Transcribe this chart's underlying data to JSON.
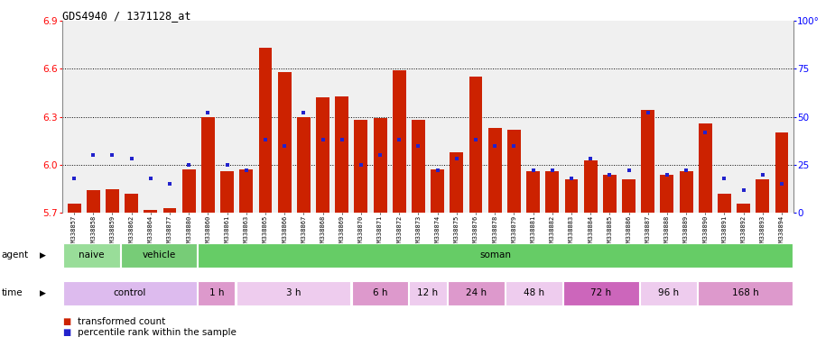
{
  "title": "GDS4940 / 1371128_at",
  "samples": [
    "GSM338857",
    "GSM338858",
    "GSM338859",
    "GSM338862",
    "GSM338864",
    "GSM338877",
    "GSM338880",
    "GSM338860",
    "GSM338861",
    "GSM338863",
    "GSM338865",
    "GSM338866",
    "GSM338867",
    "GSM338868",
    "GSM338869",
    "GSM338870",
    "GSM338871",
    "GSM338872",
    "GSM338873",
    "GSM338874",
    "GSM338875",
    "GSM338876",
    "GSM338878",
    "GSM338879",
    "GSM338881",
    "GSM338882",
    "GSM338883",
    "GSM338884",
    "GSM338885",
    "GSM338886",
    "GSM338887",
    "GSM338888",
    "GSM338889",
    "GSM338890",
    "GSM338891",
    "GSM338892",
    "GSM338893",
    "GSM338894"
  ],
  "bar_heights": [
    5.76,
    5.84,
    5.85,
    5.82,
    5.72,
    5.73,
    5.97,
    6.3,
    5.96,
    5.97,
    6.73,
    6.58,
    6.3,
    6.42,
    6.43,
    6.28,
    6.29,
    6.59,
    6.28,
    5.97,
    6.08,
    6.55,
    6.23,
    6.22,
    5.96,
    5.96,
    5.91,
    6.03,
    5.94,
    5.91,
    6.34,
    5.94,
    5.96,
    6.26,
    5.82,
    5.76,
    5.91,
    6.2
  ],
  "percentile_values": [
    18,
    30,
    30,
    28,
    18,
    15,
    25,
    52,
    25,
    22,
    38,
    35,
    52,
    38,
    38,
    25,
    30,
    38,
    35,
    22,
    28,
    38,
    35,
    35,
    22,
    22,
    18,
    28,
    20,
    22,
    52,
    20,
    22,
    42,
    18,
    12,
    20,
    15
  ],
  "ylim_left": [
    5.7,
    6.9
  ],
  "ylim_right": [
    0,
    100
  ],
  "yticks_left": [
    5.7,
    6.0,
    6.3,
    6.6,
    6.9
  ],
  "ytick_labels_left": [
    "5.7",
    "6.0",
    "6.3",
    "6.6",
    "6.9"
  ],
  "yticks_right": [
    0,
    25,
    50,
    75,
    100
  ],
  "ytick_labels_right": [
    "0",
    "25",
    "50",
    "75",
    "100°"
  ],
  "bar_color": "#CC2200",
  "percentile_color": "#2222CC",
  "plot_bg_color": "#F0F0F0",
  "agent_groups": [
    {
      "label": "naive",
      "start": 0,
      "end": 3,
      "color": "#99DD99"
    },
    {
      "label": "vehicle",
      "start": 3,
      "end": 7,
      "color": "#77CC77"
    },
    {
      "label": "soman",
      "start": 7,
      "end": 38,
      "color": "#66CC66"
    }
  ],
  "time_groups": [
    {
      "label": "control",
      "start": 0,
      "end": 7,
      "color": "#DDBBEE"
    },
    {
      "label": "1 h",
      "start": 7,
      "end": 9,
      "color": "#DD99CC"
    },
    {
      "label": "3 h",
      "start": 9,
      "end": 15,
      "color": "#EECCEE"
    },
    {
      "label": "6 h",
      "start": 15,
      "end": 18,
      "color": "#DD99CC"
    },
    {
      "label": "12 h",
      "start": 18,
      "end": 20,
      "color": "#EECCEE"
    },
    {
      "label": "24 h",
      "start": 20,
      "end": 23,
      "color": "#DD99CC"
    },
    {
      "label": "48 h",
      "start": 23,
      "end": 26,
      "color": "#EECCEE"
    },
    {
      "label": "72 h",
      "start": 26,
      "end": 30,
      "color": "#CC66BB"
    },
    {
      "label": "96 h",
      "start": 30,
      "end": 33,
      "color": "#EECCEE"
    },
    {
      "label": "168 h",
      "start": 33,
      "end": 38,
      "color": "#DD99CC"
    }
  ],
  "legend_items": [
    {
      "label": "transformed count",
      "color": "#CC2200"
    },
    {
      "label": "percentile rank within the sample",
      "color": "#2222CC"
    }
  ]
}
